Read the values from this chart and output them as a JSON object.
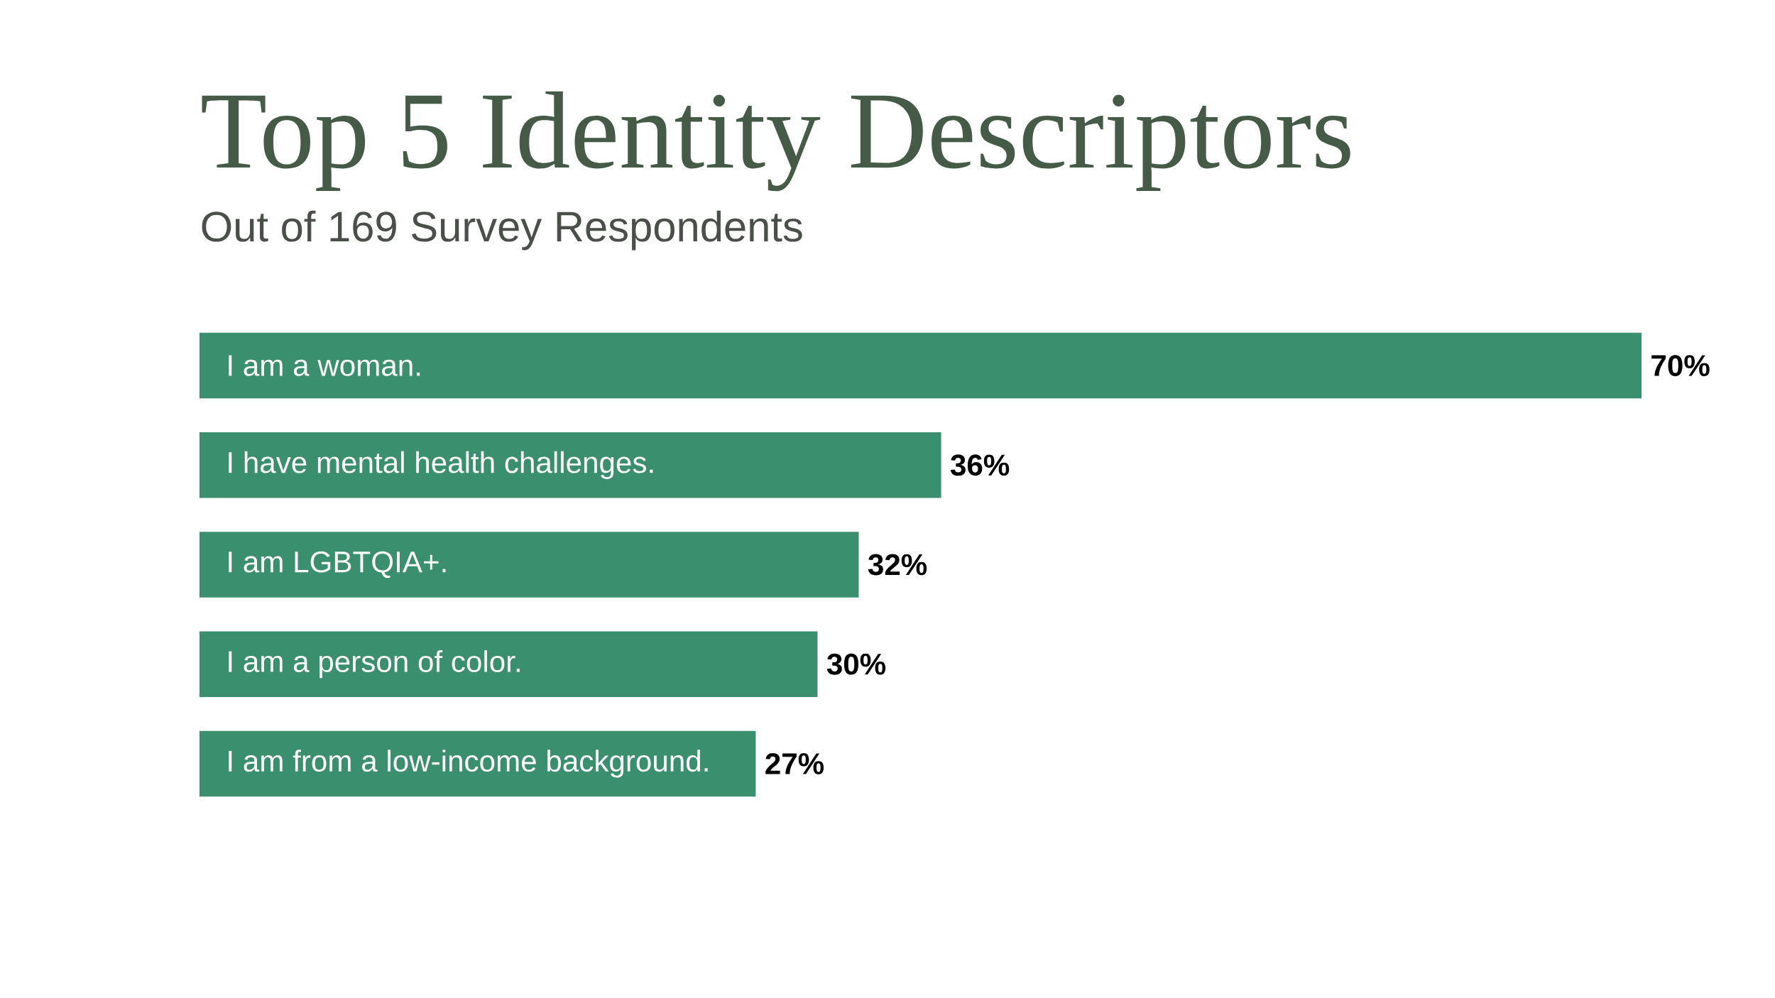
{
  "chart_data": {
    "type": "bar",
    "orientation": "horizontal",
    "title": "Top 5 Identity Descriptors",
    "subtitle": "Out of 169 Survey Respondents",
    "categories": [
      "I am a woman.",
      "I have mental health challenges.",
      "I am LGBTQIA+.",
      "I am a person of color.",
      "I am from a low-income background."
    ],
    "values": [
      70,
      36,
      32,
      30,
      27
    ],
    "value_labels": [
      "70%",
      "36%",
      "32%",
      "30%",
      "27%"
    ],
    "color": "#3a8f6e",
    "xlim": [
      0,
      70
    ]
  }
}
